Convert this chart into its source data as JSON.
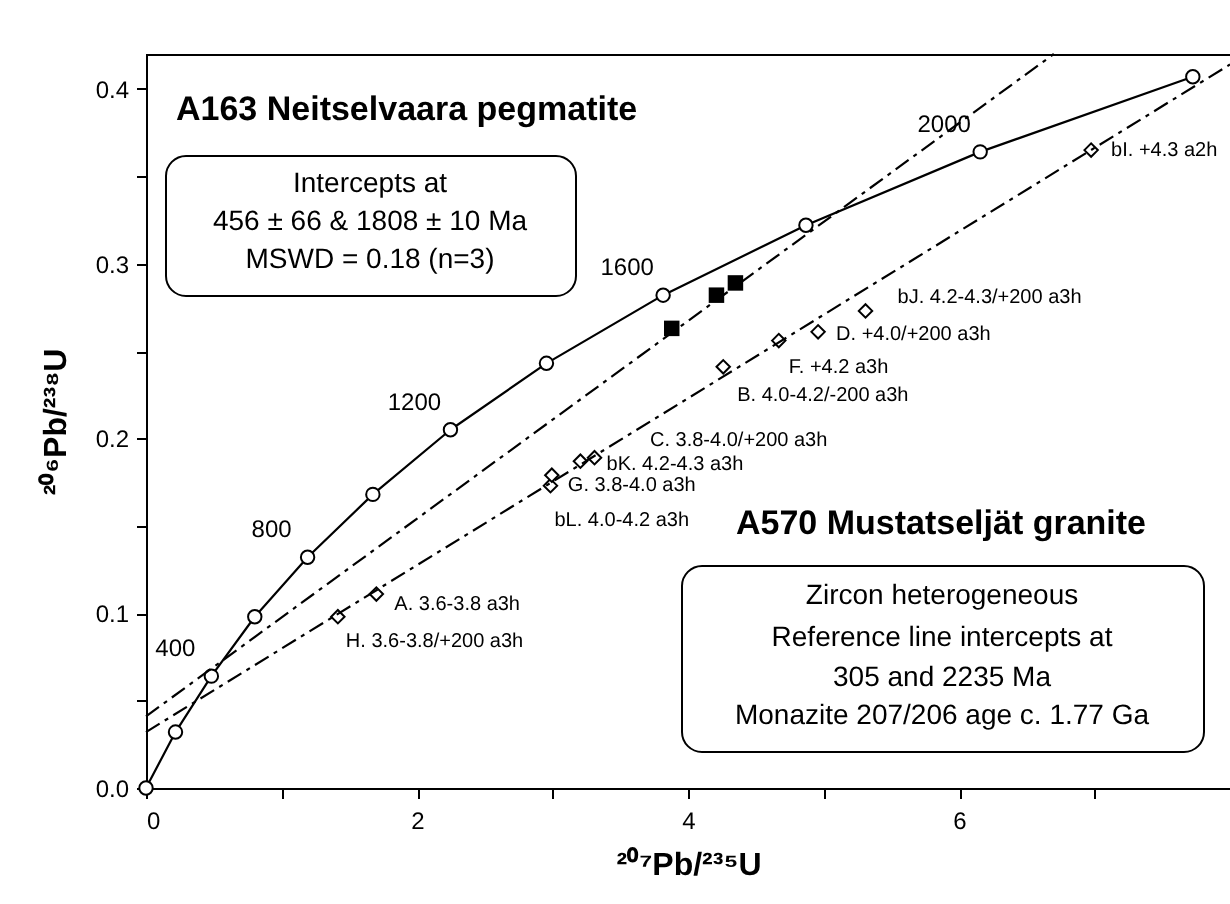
{
  "chart_data": {
    "type": "scatter",
    "xlabel": "²⁰⁷Pb/²³⁵U",
    "ylabel": "²⁰⁶Pb/²³⁸U",
    "xlim": [
      0,
      8
    ],
    "ylim": [
      0,
      0.42
    ],
    "xticks": [
      0,
      {
        "value": 1,
        "label": null
      },
      2,
      {
        "value": 3,
        "label": null
      },
      4,
      {
        "value": 5,
        "label": null
      },
      6,
      {
        "value": 7,
        "label": null
      }
    ],
    "yticks": [
      {
        "value": 0,
        "label": "0.0"
      },
      {
        "value": 0.05,
        "label": null
      },
      0.1,
      {
        "value": 0.15,
        "label": null
      },
      0.2,
      {
        "value": 0.25,
        "label": null
      },
      0.3,
      {
        "value": 0.35,
        "label": null
      },
      0.4
    ],
    "grid": false,
    "series": [
      {
        "type": "line",
        "marker": "circle",
        "line_style": "solid",
        "color": "#000000",
        "x": [
          0,
          0.2177,
          0.4823,
          0.8028,
          1.1926,
          1.6743,
          2.2469,
          2.9553,
          3.8164,
          4.8703,
          6.1564,
          7.7256
        ],
        "values": [
          0,
          0.032,
          0.064,
          0.098,
          0.132,
          0.168,
          0.205,
          0.243,
          0.282,
          0.322,
          0.364,
          0.407
        ]
      },
      {
        "marker": "square",
        "color": "#000000",
        "x": [
          3.88,
          4.21,
          4.35
        ],
        "values": [
          0.263,
          0.282,
          0.289
        ]
      },
      {
        "marker": "diamond",
        "color": "#000000",
        "x": [
          1.416,
          1.7,
          2.985,
          2.995,
          3.206,
          3.31,
          4.26,
          4.67,
          4.96,
          5.31,
          6.975
        ],
        "values": [
          0.098,
          0.111,
          0.173,
          0.179,
          0.187,
          0.189,
          0.241,
          0.256,
          0.261,
          0.273,
          0.365
        ]
      },
      {
        "type": "line",
        "marker": "none",
        "line_style": "dashed",
        "color": "#000000",
        "x": [
          0,
          6.7
        ],
        "values": [
          0.041,
          0.42
        ]
      },
      {
        "type": "line",
        "marker": "none",
        "line_style": "dashed",
        "color": "#000000",
        "x": [
          0,
          8
        ],
        "values": [
          0.032,
          0.414
        ]
      }
    ],
    "annotations": [
      "A163 Neitselvaara pegmatite",
      "Intercepts at",
      "456 ± 66 & 1808 ± 10  Ma",
      "MSWD = 0.18 (n=3)",
      "A570 Mustatseljät granite",
      "Zircon heterogeneous",
      "Reference line intercepts at",
      "305 and 2235 Ma",
      "Monazite 207/206 age c. 1.77 Ga",
      {
        "text": "400",
        "x": 0.4823,
        "y": 0.064
      },
      {
        "text": "800",
        "x": 1.1926,
        "y": 0.1319
      },
      {
        "text": "1200",
        "x": 2.2469,
        "y": 0.2046
      },
      {
        "text": "1600",
        "x": 3.8164,
        "y": 0.282
      },
      {
        "text": "2000",
        "x": 6.1564,
        "y": 0.3641
      },
      {
        "text": "H. 3.6-3.8/+200 a3h",
        "x": 1.416,
        "y": 0.098
      },
      {
        "text": "A. 3.6-3.8 a3h",
        "x": 1.7,
        "y": 0.111
      },
      {
        "text": "bL. 4.0-4.2 a3h",
        "x": 2.985,
        "y": 0.173
      },
      {
        "text": "G. 3.8-4.0 a3h",
        "x": 2.995,
        "y": 0.179
      },
      "C. 3.8-4.0/+200 a3h",
      {
        "text": "bK. 4.2-4.3 a3h",
        "x": 3.31,
        "y": 0.189
      },
      {
        "text": "B. 4.0-4.2/-200 a3h",
        "x": 4.26,
        "y": 0.241
      },
      {
        "text": "F. +4.2 a3h",
        "x": 4.67,
        "y": 0.256
      },
      {
        "text": "D. +4.0/+200 a3h",
        "x": 4.96,
        "y": 0.261
      },
      {
        "text": "bJ. 4.2-4.3/+200 a3h",
        "x": 5.31,
        "y": 0.273
      },
      {
        "text": "bI. +4.3 a2h",
        "x": 6.975,
        "y": 0.365
      }
    ]
  }
}
